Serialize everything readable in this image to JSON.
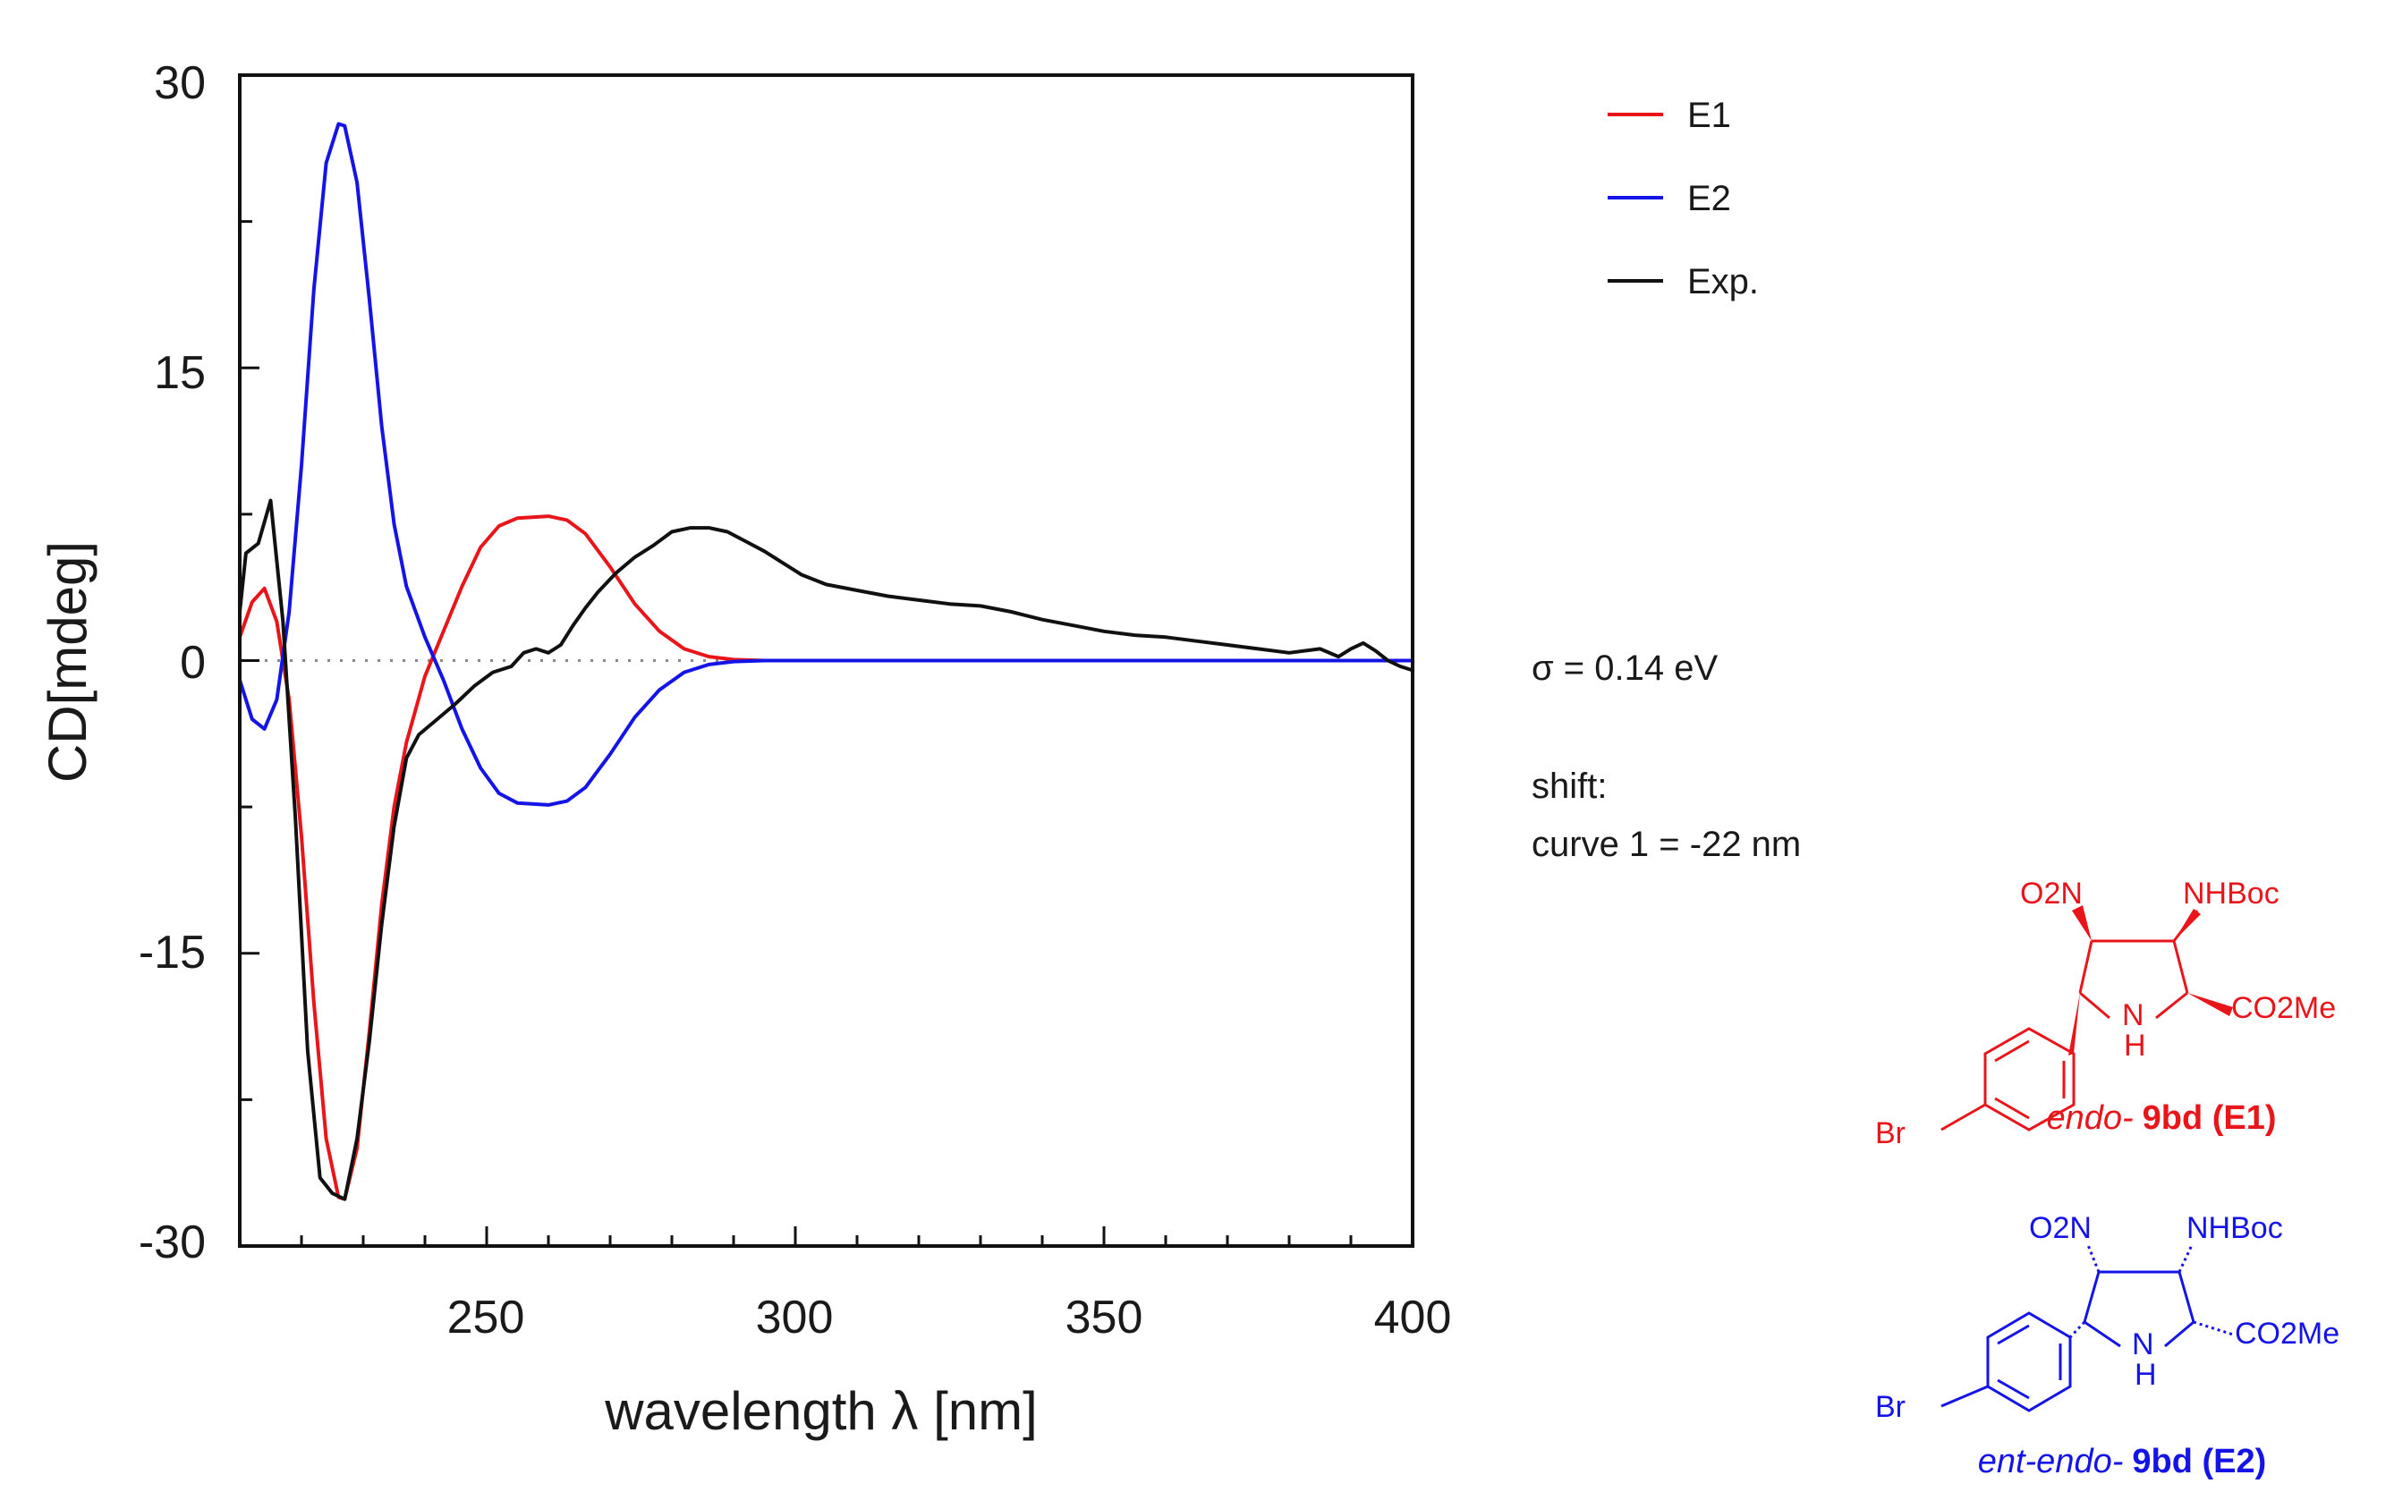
{
  "chart_data": {
    "type": "line",
    "title": "",
    "xlabel": "wavelength λ [nm]",
    "ylabel": "CD[mdeg]",
    "xlim": [
      210,
      400
    ],
    "ylim": [
      -30,
      30
    ],
    "x_ticks": [
      "250",
      "300",
      "350",
      "400"
    ],
    "y_ticks": [
      "30",
      "15",
      "0",
      "-15",
      "-30"
    ],
    "zero_line": "dotted",
    "legend_position": "top-right, outside plot",
    "series": [
      {
        "name": "E1",
        "color": "#e8161b",
        "points": [
          [
            210,
            1.2
          ],
          [
            212,
            3.0
          ],
          [
            214,
            3.7
          ],
          [
            216,
            2.0
          ],
          [
            218,
            -2.0
          ],
          [
            220,
            -9.0
          ],
          [
            222,
            -17.5
          ],
          [
            224,
            -24.5
          ],
          [
            226,
            -27.5
          ],
          [
            227,
            -27.6
          ],
          [
            229,
            -25.0
          ],
          [
            231,
            -19.0
          ],
          [
            233,
            -12.5
          ],
          [
            235,
            -7.5
          ],
          [
            237,
            -4.2
          ],
          [
            240,
            -0.8
          ],
          [
            243,
            1.5
          ],
          [
            246,
            3.8
          ],
          [
            249,
            5.8
          ],
          [
            252,
            6.9
          ],
          [
            255,
            7.3
          ],
          [
            260,
            7.4
          ],
          [
            263,
            7.2
          ],
          [
            266,
            6.5
          ],
          [
            270,
            4.8
          ],
          [
            274,
            2.9
          ],
          [
            278,
            1.5
          ],
          [
            282,
            0.6
          ],
          [
            286,
            0.2
          ],
          [
            290,
            0.05
          ],
          [
            295,
            0
          ],
          [
            400,
            0
          ]
        ]
      },
      {
        "name": "E2",
        "color": "#1414e6",
        "points": [
          [
            210,
            -1.0
          ],
          [
            212,
            -3.0
          ],
          [
            214,
            -3.5
          ],
          [
            216,
            -2.0
          ],
          [
            218,
            2.5
          ],
          [
            220,
            10.0
          ],
          [
            222,
            19.0
          ],
          [
            224,
            25.5
          ],
          [
            226,
            27.5
          ],
          [
            227,
            27.4
          ],
          [
            229,
            24.5
          ],
          [
            231,
            18.5
          ],
          [
            233,
            12.0
          ],
          [
            235,
            7.0
          ],
          [
            237,
            3.8
          ],
          [
            240,
            1.2
          ],
          [
            243,
            -1.0
          ],
          [
            246,
            -3.5
          ],
          [
            249,
            -5.5
          ],
          [
            252,
            -6.8
          ],
          [
            255,
            -7.3
          ],
          [
            260,
            -7.4
          ],
          [
            263,
            -7.2
          ],
          [
            266,
            -6.5
          ],
          [
            270,
            -4.8
          ],
          [
            274,
            -2.9
          ],
          [
            278,
            -1.5
          ],
          [
            282,
            -0.6
          ],
          [
            286,
            -0.2
          ],
          [
            290,
            -0.05
          ],
          [
            295,
            0
          ],
          [
            400,
            0
          ]
        ]
      },
      {
        "name": "Exp.",
        "color": "#111111",
        "points": [
          [
            210,
            2.5
          ],
          [
            211,
            5.5
          ],
          [
            213,
            6.0
          ],
          [
            215,
            8.2
          ],
          [
            217,
            2.0
          ],
          [
            219,
            -8.0
          ],
          [
            221,
            -20.0
          ],
          [
            223,
            -26.5
          ],
          [
            225,
            -27.3
          ],
          [
            227,
            -27.6
          ],
          [
            229,
            -24.5
          ],
          [
            231,
            -19.5
          ],
          [
            233,
            -13.5
          ],
          [
            235,
            -8.5
          ],
          [
            237,
            -5.0
          ],
          [
            239,
            -3.8
          ],
          [
            242,
            -3.0
          ],
          [
            245,
            -2.2
          ],
          [
            248,
            -1.3
          ],
          [
            251,
            -0.6
          ],
          [
            254,
            -0.3
          ],
          [
            256,
            0.4
          ],
          [
            258,
            0.6
          ],
          [
            260,
            0.4
          ],
          [
            262,
            0.8
          ],
          [
            264,
            1.8
          ],
          [
            266,
            2.7
          ],
          [
            268,
            3.5
          ],
          [
            271,
            4.5
          ],
          [
            274,
            5.3
          ],
          [
            277,
            5.9
          ],
          [
            280,
            6.6
          ],
          [
            283,
            6.8
          ],
          [
            286,
            6.8
          ],
          [
            289,
            6.6
          ],
          [
            292,
            6.1
          ],
          [
            295,
            5.6
          ],
          [
            298,
            5.0
          ],
          [
            301,
            4.4
          ],
          [
            305,
            3.9
          ],
          [
            310,
            3.6
          ],
          [
            315,
            3.3
          ],
          [
            320,
            3.1
          ],
          [
            325,
            2.9
          ],
          [
            330,
            2.8
          ],
          [
            335,
            2.5
          ],
          [
            340,
            2.1
          ],
          [
            345,
            1.8
          ],
          [
            350,
            1.5
          ],
          [
            355,
            1.3
          ],
          [
            360,
            1.2
          ],
          [
            365,
            1.0
          ],
          [
            370,
            0.8
          ],
          [
            375,
            0.6
          ],
          [
            380,
            0.4
          ],
          [
            385,
            0.6
          ],
          [
            388,
            0.2
          ],
          [
            390,
            0.6
          ],
          [
            392,
            0.9
          ],
          [
            394,
            0.5
          ],
          [
            396,
            0.0
          ],
          [
            398,
            -0.3
          ],
          [
            400,
            -0.5
          ]
        ]
      }
    ]
  },
  "info": {
    "sigma": "σ = 0.14 eV",
    "shift_label": "shift:",
    "shift_value": "curve 1 = -22 nm"
  },
  "structures": {
    "e1": {
      "color": "#e8161b",
      "no2": "O2N",
      "nhboc": "NHBoc",
      "co2me": "CO2Me",
      "nh_n": "N",
      "nh_h": "H",
      "br": "Br",
      "caption_prefix": "endo-",
      "caption_bold": "9bd (E1)"
    },
    "e2": {
      "color": "#1414e6",
      "no2": "O2N",
      "nhboc": "NHBoc",
      "co2me": "CO2Me",
      "nh_n": "N",
      "nh_h": "H",
      "br": "Br",
      "caption_prefix": "ent-endo-",
      "caption_bold": "9bd (E2)"
    }
  }
}
